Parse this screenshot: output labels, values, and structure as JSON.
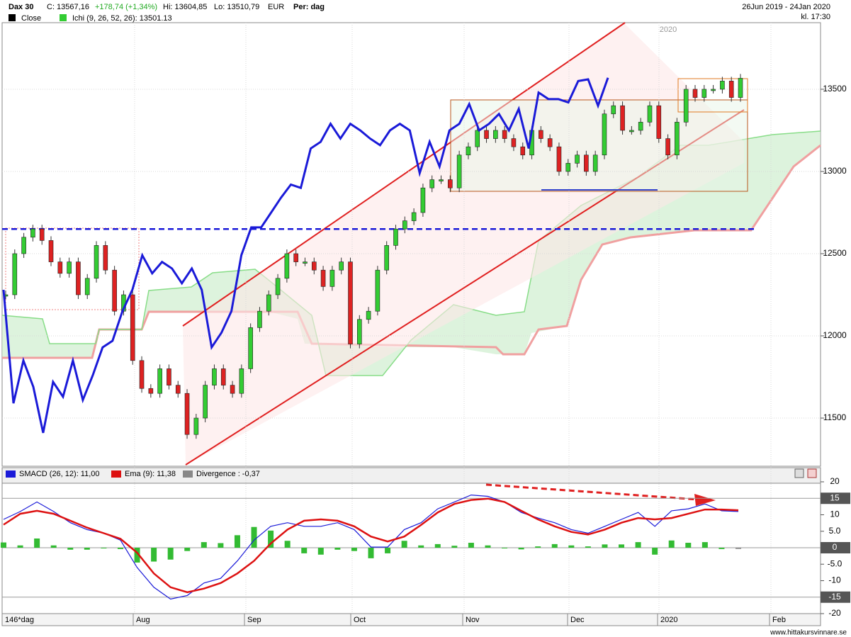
{
  "header": {
    "title": "Dax 30",
    "close": "C: 13567,16",
    "change": "+178,74 (+1,34%)",
    "high": "Hi: 13604,85",
    "low": "Lo: 13510,79",
    "currency": "EUR",
    "period": "Per: dag",
    "range": "26Jun 2019 - 24Jan 2020",
    "time": "kl. 17:30",
    "legend": [
      {
        "name": "Close",
        "color": "#000000"
      },
      {
        "name": "Ichi (9, 26, 52, 26): 13501.13",
        "color": "#33cc33"
      }
    ]
  },
  "chart_data": [
    {
      "type": "candlestick",
      "year_marker": "2020",
      "up_color": "#33cc33",
      "down_color": "#dd2222",
      "grid": true,
      "ylim": [
        11207,
        13905
      ],
      "yticks": [
        11500,
        12000,
        12500,
        13000,
        13500
      ],
      "level_line": 12650,
      "series": [
        {
          "name": "Close",
          "color": "#000000",
          "values": [
            12250,
            12500,
            12600,
            12650,
            12580,
            12450,
            12380,
            12450,
            12250,
            12350,
            12550,
            12400,
            12150,
            12250,
            11850,
            11680,
            11650,
            11800,
            11700,
            11650,
            11400,
            11500,
            11700,
            11800,
            11700,
            11650,
            11800,
            12050,
            12150,
            12250,
            12350,
            12500,
            12450,
            12450,
            12400,
            12300,
            12400,
            12450,
            11950,
            12100,
            12150,
            12400,
            12550,
            12650,
            12700,
            12750,
            12900,
            12950,
            12950,
            12900,
            13100,
            13150,
            13250,
            13200,
            13250,
            13200,
            13150,
            13100,
            13250,
            13200,
            13150,
            13000,
            13050,
            13100,
            13000,
            13100,
            13350,
            13400,
            13250,
            13250,
            13300,
            13400,
            13200,
            13100,
            13300,
            13500,
            13450,
            13500,
            13500,
            13550,
            13450,
            13567
          ]
        },
        {
          "color": "#1a1ad8",
          "values": [
            12280,
            11590,
            11850,
            11690,
            11410,
            11720,
            11630,
            11850,
            11610,
            11760,
            11930,
            11970,
            12150,
            12280,
            12490,
            12380,
            12450,
            12410,
            12320,
            12410,
            12280,
            11930,
            12020,
            12150,
            12490,
            12660,
            12660,
            12750,
            12840,
            12920,
            12900,
            13140,
            13180,
            13290,
            13200,
            13290,
            13250,
            13200,
            13160,
            13250,
            13290,
            13250,
            12990,
            13180,
            13030,
            13250,
            13290,
            13410,
            13250,
            13290,
            13350,
            13250,
            13380,
            13140,
            13480,
            13440,
            13440,
            13420,
            13550,
            13560,
            13400,
            13570
          ]
        }
      ]
    },
    {
      "type": "line",
      "ylim": [
        -20,
        20
      ],
      "grid": true,
      "yticks": [
        20,
        15,
        10,
        {
          "value": 5,
          "label": "5.0"
        },
        0,
        {
          "value": -5,
          "label": "-5.0"
        },
        -10,
        -15,
        -20
      ],
      "yticks_highlighted": [
        15,
        0,
        -15
      ],
      "x_labels": [
        "146*dag",
        "Aug",
        "Sep",
        "Oct",
        "Nov",
        "Dec",
        "2020",
        "Feb"
      ],
      "series": [
        {
          "name": "SMACD (26, 12): 11,00",
          "color": "#1a1ad8",
          "values": [
            8.6,
            11,
            13.9,
            11,
            7.6,
            5.5,
            4.4,
            2.3,
            -6,
            -12,
            -15.6,
            -14.5,
            -10.7,
            -9.3,
            -4,
            2.3,
            6.5,
            7.6,
            6.5,
            6.5,
            7.6,
            5.5,
            0.2,
            0.2,
            5.5,
            7.6,
            11.8,
            13.9,
            16,
            15.6,
            13.9,
            10.7,
            9,
            7.6,
            5.5,
            4.4,
            6.5,
            8.6,
            10.7,
            6.5,
            11.2,
            11.8,
            13.3,
            11.2,
            11
          ]
        },
        {
          "name": "Ema (9): 11,38",
          "color": "#dd1111",
          "values": [
            7,
            10.3,
            11.2,
            10.3,
            8.2,
            6.1,
            4.4,
            2.7,
            -1.5,
            -7.8,
            -12,
            -13.5,
            -12.4,
            -10.7,
            -7.8,
            -4,
            1.3,
            5.5,
            8.2,
            8.6,
            8.2,
            6.5,
            3.4,
            1.9,
            3.4,
            6.9,
            10.7,
            13.3,
            14.5,
            14.9,
            13.9,
            11.2,
            8.6,
            6.5,
            4.8,
            4,
            5.5,
            7.6,
            9,
            8.6,
            9,
            10.3,
            11.6,
            11.6,
            11.38
          ]
        },
        {
          "name": "Divergence : -0,37",
          "color": "#33bb33",
          "values": [
            1.6,
            0.7,
            2.8,
            0.7,
            -0.6,
            -0.6,
            0,
            -0.4,
            -4.5,
            -4.2,
            -3.6,
            -1,
            1.7,
            1.4,
            3.8,
            6.3,
            5.2,
            2.1,
            -1.7,
            -2.1,
            -0.6,
            -1,
            -3.2,
            -1.7,
            2.1,
            0.7,
            1.1,
            0.6,
            1.5,
            0.7,
            0,
            -0.5,
            0.4,
            1.1,
            0.7,
            0.4,
            1,
            1,
            1.7,
            -2.1,
            2.2,
            1.5,
            1.7,
            -0.4,
            -0.37
          ]
        }
      ]
    }
  ],
  "footer": "www.hittakursvinnare.se"
}
